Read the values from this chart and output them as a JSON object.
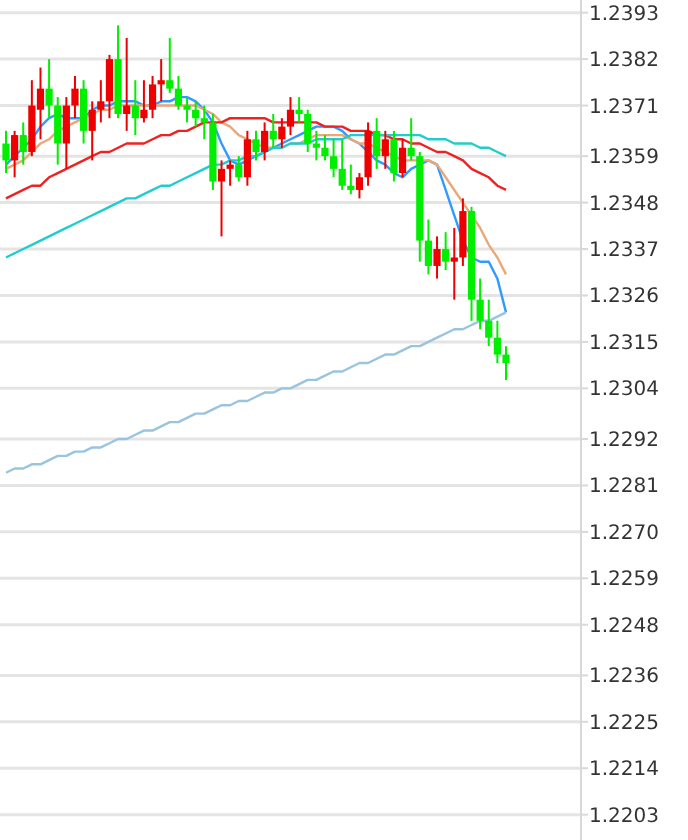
{
  "chart_data": {
    "type": "candlestick",
    "categories": [
      null,
      null,
      null,
      null,
      null,
      null,
      null,
      null,
      null,
      null,
      null,
      null,
      null,
      null,
      null,
      null,
      null,
      null,
      null,
      null,
      null,
      null,
      null,
      null,
      null,
      null,
      null,
      null,
      null,
      null,
      null,
      null,
      null,
      null,
      null,
      null,
      null,
      null,
      null,
      null,
      null,
      null,
      null,
      null,
      null,
      null,
      null,
      null,
      null,
      null,
      null,
      null,
      null,
      null,
      null,
      null,
      null,
      null,
      null
    ],
    "ohlc": [
      [
        1.2362,
        1.2365,
        1.2355,
        1.2358
      ],
      [
        1.2358,
        1.2365,
        1.2354,
        1.2364
      ],
      [
        1.2364,
        1.2367,
        1.2357,
        1.236
      ],
      [
        1.236,
        1.2377,
        1.2359,
        1.2371
      ],
      [
        1.237,
        1.238,
        1.2363,
        1.2375
      ],
      [
        1.2375,
        1.2382,
        1.2368,
        1.2371
      ],
      [
        1.2371,
        1.2373,
        1.2357,
        1.2362
      ],
      [
        1.2362,
        1.2373,
        1.2356,
        1.2371
      ],
      [
        1.2371,
        1.2378,
        1.2368,
        1.2375
      ],
      [
        1.2375,
        1.2377,
        1.2362,
        1.2365
      ],
      [
        1.2365,
        1.2372,
        1.2358,
        1.237
      ],
      [
        1.237,
        1.2377,
        1.2367,
        1.2372
      ],
      [
        1.2372,
        1.2383,
        1.2368,
        1.2382
      ],
      [
        1.2382,
        1.239,
        1.2368,
        1.2369
      ],
      [
        1.2369,
        1.2387,
        1.2365,
        1.2371
      ],
      [
        1.2371,
        1.2377,
        1.2364,
        1.2368
      ],
      [
        1.2368,
        1.2377,
        1.2367,
        1.237
      ],
      [
        1.237,
        1.2378,
        1.2368,
        1.2376
      ],
      [
        1.2376,
        1.2382,
        1.2372,
        1.2377
      ],
      [
        1.2377,
        1.2387,
        1.2374,
        1.2375
      ],
      [
        1.2375,
        1.2378,
        1.237,
        1.2371
      ],
      [
        1.2371,
        1.2373,
        1.2367,
        1.237
      ],
      [
        1.237,
        1.2372,
        1.2366,
        1.2368
      ],
      [
        1.2368,
        1.2371,
        1.2363,
        1.2367
      ],
      [
        1.2367,
        1.2369,
        1.2351,
        1.2353
      ],
      [
        1.2353,
        1.2358,
        1.234,
        1.2356
      ],
      [
        1.2356,
        1.2358,
        1.2352,
        1.2357
      ],
      [
        1.2357,
        1.2359,
        1.2353,
        1.2354
      ],
      [
        1.2354,
        1.2365,
        1.2352,
        1.2363
      ],
      [
        1.2363,
        1.2365,
        1.2358,
        1.236
      ],
      [
        1.236,
        1.2367,
        1.2358,
        1.2365
      ],
      [
        1.2365,
        1.2369,
        1.2361,
        1.2363
      ],
      [
        1.2363,
        1.2368,
        1.2361,
        1.2366
      ],
      [
        1.2366,
        1.2373,
        1.2364,
        1.237
      ],
      [
        1.237,
        1.2373,
        1.2367,
        1.2369
      ],
      [
        1.2369,
        1.237,
        1.236,
        1.2362
      ],
      [
        1.2362,
        1.2365,
        1.2358,
        1.2361
      ],
      [
        1.2361,
        1.2364,
        1.2358,
        1.2359
      ],
      [
        1.2359,
        1.2363,
        1.2354,
        1.2356
      ],
      [
        1.2356,
        1.2363,
        1.2351,
        1.2352
      ],
      [
        1.2352,
        1.2357,
        1.235,
        1.2351
      ],
      [
        1.2351,
        1.2355,
        1.2349,
        1.2354
      ],
      [
        1.2354,
        1.2367,
        1.2352,
        1.2365
      ],
      [
        1.2365,
        1.2368,
        1.2356,
        1.2359
      ],
      [
        1.2359,
        1.2365,
        1.2356,
        1.2363
      ],
      [
        1.2363,
        1.2365,
        1.2353,
        1.2355
      ],
      [
        1.2355,
        1.2363,
        1.2354,
        1.2361
      ],
      [
        1.2361,
        1.2368,
        1.2358,
        1.2359
      ],
      [
        1.2359,
        1.236,
        1.2334,
        1.2339
      ],
      [
        1.2339,
        1.2344,
        1.2331,
        1.2333
      ],
      [
        1.2333,
        1.234,
        1.233,
        1.2337
      ],
      [
        1.2337,
        1.2341,
        1.2332,
        1.2334
      ],
      [
        1.2334,
        1.2342,
        1.2325,
        1.2335
      ],
      [
        1.2335,
        1.2349,
        1.2333,
        1.2346
      ],
      [
        1.2346,
        1.2347,
        1.232,
        1.2325
      ],
      [
        1.2325,
        1.233,
        1.2318,
        1.232
      ],
      [
        1.232,
        1.2325,
        1.2314,
        1.2316
      ],
      [
        1.2316,
        1.232,
        1.231,
        1.2312
      ],
      [
        1.2312,
        1.2314,
        1.2306,
        1.231
      ]
    ],
    "colors": [
      "#00ee00",
      "#ee0000",
      "#00ee00",
      "#ee0000",
      "#ee0000",
      "#00ee00",
      "#00ee00",
      "#ee0000",
      "#ee0000",
      "#00ee00",
      "#ee0000",
      "#ee0000",
      "#ee0000",
      "#00ee00",
      "#ee0000",
      "#00ee00",
      "#ee0000",
      "#ee0000",
      "#ee0000",
      "#00ee00",
      "#00ee00",
      "#00ee00",
      "#00ee00",
      "#00ee00",
      "#00ee00",
      "#ee0000",
      "#ee0000",
      "#00ee00",
      "#ee0000",
      "#00ee00",
      "#ee0000",
      "#00ee00",
      "#ee0000",
      "#ee0000",
      "#00ee00",
      "#00ee00",
      "#00ee00",
      "#00ee00",
      "#00ee00",
      "#00ee00",
      "#00ee00",
      "#ee0000",
      "#ee0000",
      "#00ee00",
      "#ee0000",
      "#00ee00",
      "#ee0000",
      "#00ee00",
      "#00ee00",
      "#00ee00",
      "#ee0000",
      "#00ee00",
      "#ee0000",
      "#ee0000",
      "#00ee00",
      "#00ee00",
      "#00ee00",
      "#00ee00",
      "#00ee00"
    ],
    "series": [
      {
        "type": "line",
        "color": "#3399ff",
        "values": [
          1.2357,
          1.2359,
          1.2361,
          1.2363,
          1.2366,
          1.2368,
          1.2369,
          1.2368,
          1.2368,
          1.2368,
          1.237,
          1.2371,
          1.2371,
          1.2372,
          1.2372,
          1.2372,
          1.2371,
          1.2371,
          1.2372,
          1.2372,
          1.2373,
          1.2373,
          1.2372,
          1.237,
          1.2367,
          1.2362,
          1.2358,
          1.2357,
          1.2358,
          1.2359,
          1.236,
          1.2361,
          1.2362,
          1.2363,
          1.2364,
          1.2365,
          1.2366,
          1.2366,
          1.2366,
          1.2365,
          1.2363,
          1.2362,
          1.236,
          1.2358,
          1.2357,
          1.2355,
          1.2354,
          1.2356,
          1.2357,
          1.2358,
          1.2357,
          1.2351,
          1.2345,
          1.2339,
          1.2335,
          1.2334,
          1.2334,
          1.233,
          1.2322
        ]
      },
      {
        "type": "line",
        "color": "#e8a878",
        "values": [
          1.2356,
          1.2357,
          1.2358,
          1.236,
          1.2362,
          1.2363,
          1.2365,
          1.2366,
          1.2367,
          1.2368,
          1.2369,
          1.237,
          1.237,
          1.2371,
          1.2371,
          1.2371,
          1.2371,
          1.2371,
          1.2371,
          1.2371,
          1.2371,
          1.2371,
          1.2371,
          1.237,
          1.2369,
          1.2367,
          1.2366,
          1.2364,
          1.2363,
          1.2362,
          1.2361,
          1.2361,
          1.2361,
          1.2362,
          1.2362,
          1.2363,
          1.2364,
          1.2364,
          1.2364,
          1.2364,
          1.2363,
          1.2362,
          1.2362,
          1.2361,
          1.236,
          1.2359,
          1.2358,
          1.2358,
          1.2358,
          1.2358,
          1.2357,
          1.2354,
          1.2351,
          1.2348,
          1.2345,
          1.2342,
          1.2338,
          1.2335,
          1.2331
        ]
      },
      {
        "type": "line",
        "color": "#ee2222",
        "values": [
          1.2349,
          1.235,
          1.2351,
          1.2352,
          1.2352,
          1.2354,
          1.2355,
          1.2356,
          1.2357,
          1.2358,
          1.2359,
          1.236,
          1.236,
          1.2361,
          1.2362,
          1.2362,
          1.2362,
          1.2363,
          1.2364,
          1.2364,
          1.2365,
          1.2365,
          1.2366,
          1.2367,
          1.2367,
          1.2367,
          1.2368,
          1.2368,
          1.2368,
          1.2368,
          1.2368,
          1.2367,
          1.2367,
          1.2367,
          1.2367,
          1.2367,
          1.2367,
          1.2366,
          1.2366,
          1.2366,
          1.2365,
          1.2365,
          1.2365,
          1.2364,
          1.2364,
          1.2363,
          1.2363,
          1.2362,
          1.2362,
          1.2361,
          1.236,
          1.236,
          1.2359,
          1.2358,
          1.2356,
          1.2355,
          1.2354,
          1.2352,
          1.2351
        ]
      },
      {
        "type": "line",
        "color": "#22cccc",
        "values": [
          1.2335,
          1.2336,
          1.2337,
          1.2338,
          1.2339,
          1.234,
          1.2341,
          1.2342,
          1.2343,
          1.2344,
          1.2345,
          1.2346,
          1.2347,
          1.2348,
          1.2349,
          1.2349,
          1.235,
          1.2351,
          1.2352,
          1.2352,
          1.2353,
          1.2354,
          1.2355,
          1.2356,
          1.2357,
          1.2357,
          1.2358,
          1.2358,
          1.2359,
          1.2359,
          1.236,
          1.2361,
          1.2361,
          1.2362,
          1.2362,
          1.2362,
          1.2363,
          1.2363,
          1.2363,
          1.2363,
          1.2364,
          1.2364,
          1.2364,
          1.2364,
          1.2364,
          1.2364,
          1.2364,
          1.2364,
          1.2364,
          1.2363,
          1.2363,
          1.2363,
          1.2362,
          1.2362,
          1.2362,
          1.2361,
          1.2361,
          1.236,
          1.2359
        ]
      },
      {
        "type": "line",
        "color": "#99c4e0",
        "values": [
          1.2284,
          1.2285,
          1.2285,
          1.2286,
          1.2286,
          1.2287,
          1.2288,
          1.2288,
          1.2289,
          1.2289,
          1.229,
          1.229,
          1.2291,
          1.2292,
          1.2292,
          1.2293,
          1.2294,
          1.2294,
          1.2295,
          1.2296,
          1.2296,
          1.2297,
          1.2298,
          1.2298,
          1.2299,
          1.23,
          1.23,
          1.2301,
          1.2301,
          1.2302,
          1.2303,
          1.2303,
          1.2304,
          1.2304,
          1.2305,
          1.2306,
          1.2306,
          1.2307,
          1.2308,
          1.2308,
          1.2309,
          1.231,
          1.231,
          1.2311,
          1.2312,
          1.2312,
          1.2313,
          1.2314,
          1.2314,
          1.2315,
          1.2316,
          1.2317,
          1.2318,
          1.2318,
          1.2319,
          1.232,
          1.232,
          1.2321,
          1.2322
        ]
      }
    ],
    "ylim": [
      1.2197,
      1.2396
    ],
    "yticks": [
      1.2203,
      1.2214,
      1.2225,
      1.2236,
      1.2248,
      1.2259,
      {
        "value": 1.227,
        "label": "1.2270"
      },
      1.2281,
      1.2292,
      1.2304,
      1.2315,
      1.2326,
      1.2337,
      1.2348,
      1.2359,
      1.2371,
      1.2382,
      1.2393
    ],
    "grid": "y",
    "tick_labels": "y",
    "line_style": "solid"
  }
}
